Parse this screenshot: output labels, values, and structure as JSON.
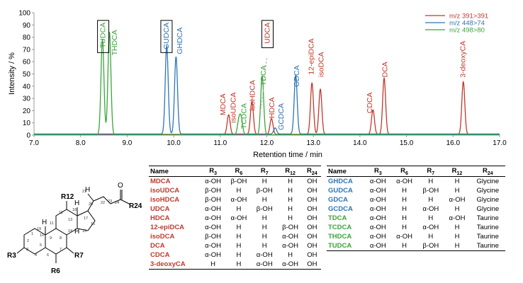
{
  "chart_data": {
    "type": "line",
    "xlabel": "Retention time / min",
    "ylabel": "Intensity / %",
    "xlim": [
      7.0,
      17.0
    ],
    "ylim": [
      0,
      100
    ],
    "x_ticks": [
      "7.0",
      "8.0",
      "9.0",
      "10.0",
      "11.0",
      "12.0",
      "13.0",
      "14.0",
      "15.0",
      "16.0",
      "17.0"
    ],
    "y_ticks": [
      "0",
      "10",
      "20",
      "30",
      "40",
      "50",
      "60",
      "70",
      "80",
      "90",
      "100"
    ],
    "legend": [
      "m/z 391>391",
      "m/z 448>74",
      "m/z 498>80"
    ],
    "series": [
      {
        "name": "m/z 391>391",
        "color": "#c0392b",
        "peaks": [
          {
            "label": "MDCA",
            "rt": 11.18,
            "height": 16
          },
          {
            "label": "isoHDCA",
            "rt": 11.68,
            "height": 27
          },
          {
            "label": "HDCA",
            "rt": 12.1,
            "height": 13
          },
          {
            "label": "12-epiDCA",
            "rt": 12.97,
            "height": 42
          },
          {
            "label": "isoDCA",
            "rt": 13.15,
            "height": 37
          },
          {
            "label": "CDCA",
            "rt": 14.28,
            "height": 20
          },
          {
            "label": "DCA",
            "rt": 14.52,
            "height": 46
          },
          {
            "label": "3-deoxyCA",
            "rt": 16.22,
            "height": 43
          }
        ]
      },
      {
        "name": "m/z 448>74",
        "color": "#2e75b6",
        "peaks": [
          {
            "label": "GUDCA",
            "rt": 9.85,
            "height": 72
          },
          {
            "label": "GHDCA",
            "rt": 10.05,
            "height": 63
          },
          {
            "label": "GCDCA",
            "rt": 12.18,
            "height": 5
          },
          {
            "label": "GDCA",
            "rt": 12.62,
            "height": 48
          }
        ]
      },
      {
        "name": "m/z 498>80",
        "color": "#3aa53a",
        "peaks": [
          {
            "label": "TUDCA",
            "rt": 8.47,
            "height": 78
          },
          {
            "label": "THDCA",
            "rt": 8.62,
            "height": 84
          },
          {
            "label": "isoUDCA",
            "rt": 11.4,
            "height": 11
          },
          {
            "label": "TCDCA",
            "rt": 11.45,
            "height": 12
          },
          {
            "label": "TDCA",
            "rt": 11.9,
            "height": 48
          }
        ]
      }
    ],
    "peak_labels": [
      {
        "text": "TUDCA",
        "rt": 8.47,
        "y": 92,
        "color": "#3aa53a",
        "boxed": true
      },
      {
        "text": "THDCA",
        "rt": 8.72,
        "y": 86,
        "color": "#3aa53a",
        "boxed": false
      },
      {
        "text": "GUDCA",
        "rt": 9.83,
        "y": 92,
        "color": "#2e75b6",
        "boxed": true
      },
      {
        "text": "GHDCA",
        "rt": 10.12,
        "y": 88,
        "color": "#2e75b6",
        "boxed": false
      },
      {
        "text": "MDCA",
        "rt": 11.05,
        "y": 34,
        "color": "#c0392b",
        "boxed": false
      },
      {
        "text": "isoUDCA",
        "rt": 11.27,
        "y": 35,
        "color": "#c0392b",
        "boxed": false
      },
      {
        "text": "TCDCA",
        "rt": 11.5,
        "y": 26,
        "color": "#3aa53a",
        "boxed": false
      },
      {
        "text": "isoHDCA",
        "rt": 11.68,
        "y": 45,
        "color": "#c0392b",
        "boxed": false
      },
      {
        "text": "TDCA",
        "rt": 11.92,
        "y": 57,
        "color": "#3aa53a",
        "boxed": false
      },
      {
        "text": "UDCA",
        "rt": 12.0,
        "y": 92,
        "color": "#c0392b",
        "boxed": true
      },
      {
        "text": "HDCA",
        "rt": 12.1,
        "y": 31,
        "color": "#c0392b",
        "boxed": false
      },
      {
        "text": "GCDCA",
        "rt": 12.3,
        "y": 26,
        "color": "#2e75b6",
        "boxed": false
      },
      {
        "text": "GDCA",
        "rt": 12.63,
        "y": 57,
        "color": "#2e75b6",
        "boxed": false
      },
      {
        "text": "12-epiDCA",
        "rt": 12.94,
        "y": 79,
        "color": "#c0392b",
        "boxed": false
      },
      {
        "text": "isoDCA",
        "rt": 13.16,
        "y": 68,
        "color": "#c0392b",
        "boxed": false
      },
      {
        "text": "CDCA",
        "rt": 14.2,
        "y": 35,
        "color": "#c0392b",
        "boxed": false
      },
      {
        "text": "DCA",
        "rt": 14.53,
        "y": 60,
        "color": "#c0392b",
        "boxed": false
      },
      {
        "text": "3-deoxyCA",
        "rt": 16.2,
        "y": 77,
        "color": "#c0392b",
        "boxed": false
      }
    ]
  },
  "table_headers": [
    "Name",
    "R3",
    "R6",
    "R7",
    "R12",
    "R24"
  ],
  "table_left": [
    {
      "name": "MDCA",
      "color": "#c0392b",
      "r3": "α-OH",
      "r6": "β-OH",
      "r7": "H",
      "r12": "H",
      "r24": "OH"
    },
    {
      "name": "isoUDCA",
      "color": "#c0392b",
      "r3": "β-OH",
      "r6": "H",
      "r7": "β-OH",
      "r12": "H",
      "r24": "OH"
    },
    {
      "name": "isoHDCA",
      "color": "#c0392b",
      "r3": "β-OH",
      "r6": "α-OH",
      "r7": "H",
      "r12": "H",
      "r24": "OH"
    },
    {
      "name": "UDCA",
      "color": "#c0392b",
      "r3": "α-OH",
      "r6": "H",
      "r7": "β-OH",
      "r12": "H",
      "r24": "OH"
    },
    {
      "name": "HDCA",
      "color": "#c0392b",
      "r3": "α-OH",
      "r6": "α-OH",
      "r7": "H",
      "r12": "H",
      "r24": "OH"
    },
    {
      "name": "12-epiDCA",
      "color": "#c0392b",
      "r3": "α-OH",
      "r6": "H",
      "r7": "H",
      "r12": "β-OH",
      "r24": "OH"
    },
    {
      "name": "isoDCA",
      "color": "#c0392b",
      "r3": "β-OH",
      "r6": "H",
      "r7": "H",
      "r12": "α-OH",
      "r24": "OH"
    },
    {
      "name": "DCA",
      "color": "#c0392b",
      "r3": "α-OH",
      "r6": "H",
      "r7": "H",
      "r12": "α-OH",
      "r24": "OH"
    },
    {
      "name": "CDCA",
      "color": "#c0392b",
      "r3": "α-OH",
      "r6": "H",
      "r7": "α-OH",
      "r12": "H",
      "r24": "OH"
    },
    {
      "name": "3-deoxyCA",
      "color": "#c0392b",
      "r3": "H",
      "r6": "H",
      "r7": "α-OH",
      "r12": "α-OH",
      "r24": "OH"
    }
  ],
  "table_right": [
    {
      "name": "GHDCA",
      "color": "#2e75b6",
      "r3": "α-OH",
      "r6": "α-OH",
      "r7": "H",
      "r12": "H",
      "r24": "Glycine"
    },
    {
      "name": "GUDCA",
      "color": "#2e75b6",
      "r3": "α-OH",
      "r6": "H",
      "r7": "β-OH",
      "r12": "H",
      "r24": "Glycine"
    },
    {
      "name": "GDCA",
      "color": "#2e75b6",
      "r3": "α-OH",
      "r6": "H",
      "r7": "H",
      "r12": "α-OH",
      "r24": "Glycine"
    },
    {
      "name": "GCDCA",
      "color": "#2e75b6",
      "r3": "α-OH",
      "r6": "H",
      "r7": "α-OH",
      "r12": "H",
      "r24": "Glycine"
    },
    {
      "name": "TDCA",
      "color": "#3aa53a",
      "r3": "α-OH",
      "r6": "H",
      "r7": "H",
      "r12": "α-OH",
      "r24": "Taurine"
    },
    {
      "name": "TCDCA",
      "color": "#3aa53a",
      "r3": "α-OH",
      "r6": "H",
      "r7": "α-OH",
      "r12": "H",
      "r24": "Taurine"
    },
    {
      "name": "THDCA",
      "color": "#3aa53a",
      "r3": "α-OH",
      "r6": "α-OH",
      "r7": "H",
      "r12": "H",
      "r24": "Taurine"
    },
    {
      "name": "TUDCA",
      "color": "#3aa53a",
      "r3": "α-OH",
      "r6": "H",
      "r7": "β-OH",
      "r12": "H",
      "r24": "Taurine"
    }
  ],
  "structure": {
    "labels": [
      "R3",
      "R6",
      "R7",
      "R12",
      "R24",
      "O",
      "H",
      "H",
      "H",
      "H"
    ],
    "numbers": [
      "1",
      "2",
      "3",
      "4",
      "5",
      "6",
      "7",
      "8",
      "9",
      "10",
      "11",
      "12",
      "13",
      "14",
      "15",
      "16",
      "17",
      "18",
      "19",
      "20",
      "21",
      "22",
      "23",
      "24"
    ]
  }
}
